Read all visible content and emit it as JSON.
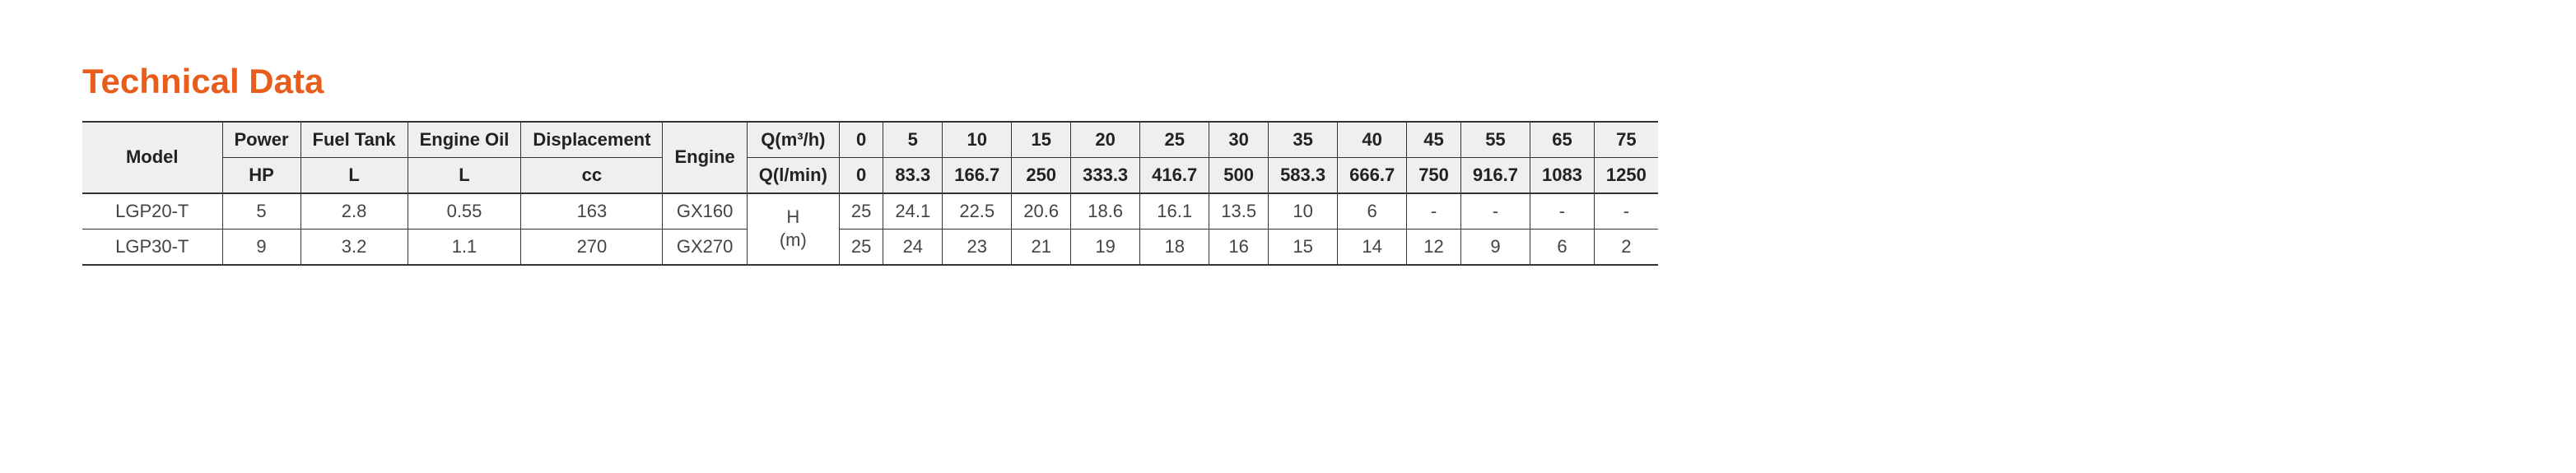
{
  "title": "Technical Data",
  "title_color": "#e85c1c",
  "header_bg": "#efefef",
  "border_color": "#333333",
  "columns": {
    "model": {
      "label": "Model",
      "unit": ""
    },
    "power": {
      "label": "Power",
      "unit": "HP"
    },
    "fuel_tank": {
      "label": "Fuel Tank",
      "unit": "L"
    },
    "engine_oil": {
      "label": "Engine Oil",
      "unit": "L"
    },
    "displacement": {
      "label": "Displacement",
      "unit": "cc"
    },
    "engine": {
      "label": "Engine",
      "unit": ""
    },
    "q_m3h": {
      "label": "Q(m³/h)"
    },
    "q_lmin": {
      "label": "Q(l/min)"
    },
    "h_m": {
      "label_line1": "H",
      "label_line2": "(m)"
    }
  },
  "q_m3h_values": [
    "0",
    "5",
    "10",
    "15",
    "20",
    "25",
    "30",
    "35",
    "40",
    "45",
    "55",
    "65",
    "75"
  ],
  "q_lmin_values": [
    "0",
    "83.3",
    "166.7",
    "250",
    "333.3",
    "416.7",
    "500",
    "583.3",
    "666.7",
    "750",
    "916.7",
    "1083",
    "1250"
  ],
  "rows": [
    {
      "model": "LGP20-T",
      "power": "5",
      "fuel_tank": "2.8",
      "engine_oil": "0.55",
      "displacement": "163",
      "engine": "GX160",
      "h": [
        "25",
        "24.1",
        "22.5",
        "20.6",
        "18.6",
        "16.1",
        "13.5",
        "10",
        "6",
        "-",
        "-",
        "-",
        "-"
      ]
    },
    {
      "model": "LGP30-T",
      "power": "9",
      "fuel_tank": "3.2",
      "engine_oil": "1.1",
      "displacement": "270",
      "engine": "GX270",
      "h": [
        "25",
        "24",
        "23",
        "21",
        "19",
        "18",
        "16",
        "15",
        "14",
        "12",
        "9",
        "6",
        "2"
      ]
    }
  ]
}
